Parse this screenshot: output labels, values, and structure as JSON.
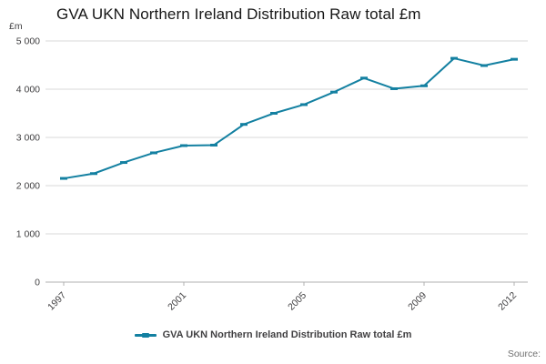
{
  "chart_data": {
    "type": "line",
    "title": "GVA UKN Northern Ireland Distribution Raw total £m",
    "ylabel": "£m",
    "xlabel": "",
    "x": [
      1997,
      1998,
      1999,
      2000,
      2001,
      2002,
      2003,
      2004,
      2005,
      2006,
      2007,
      2008,
      2009,
      2010,
      2011,
      2012
    ],
    "series": [
      {
        "name": "GVA UKN Northern Ireland Distribution Raw total £m",
        "values": [
          2150,
          2250,
          2480,
          2680,
          2830,
          2840,
          3270,
          3500,
          3680,
          3940,
          4230,
          4010,
          4070,
          4640,
          4490,
          4620
        ]
      }
    ],
    "ylim": [
      0,
      5000
    ],
    "yticks": [
      {
        "value": 0,
        "label": "0"
      },
      {
        "value": 1000,
        "label": "1 000"
      },
      {
        "value": 2000,
        "label": "2 000"
      },
      {
        "value": 3000,
        "label": "3 000"
      },
      {
        "value": 4000,
        "label": "4 000"
      },
      {
        "value": 5000,
        "label": "5 000"
      }
    ],
    "xticks": [
      {
        "year": 1997,
        "label": "1997"
      },
      {
        "year": 2001,
        "label": "2001"
      },
      {
        "year": 2005,
        "label": "2005"
      },
      {
        "year": 2009,
        "label": "2009"
      },
      {
        "year": 2012,
        "label": "2012"
      }
    ],
    "grid": true,
    "legend_position": "bottom",
    "colors": {
      "line": "#1380a1",
      "grid": "#d9d9d9",
      "axis": "#b0b0b0",
      "text": "#414042"
    }
  },
  "legend": {
    "label": "GVA UKN Northern Ireland Distribution Raw total £m"
  },
  "footer": {
    "source": "Source:"
  }
}
